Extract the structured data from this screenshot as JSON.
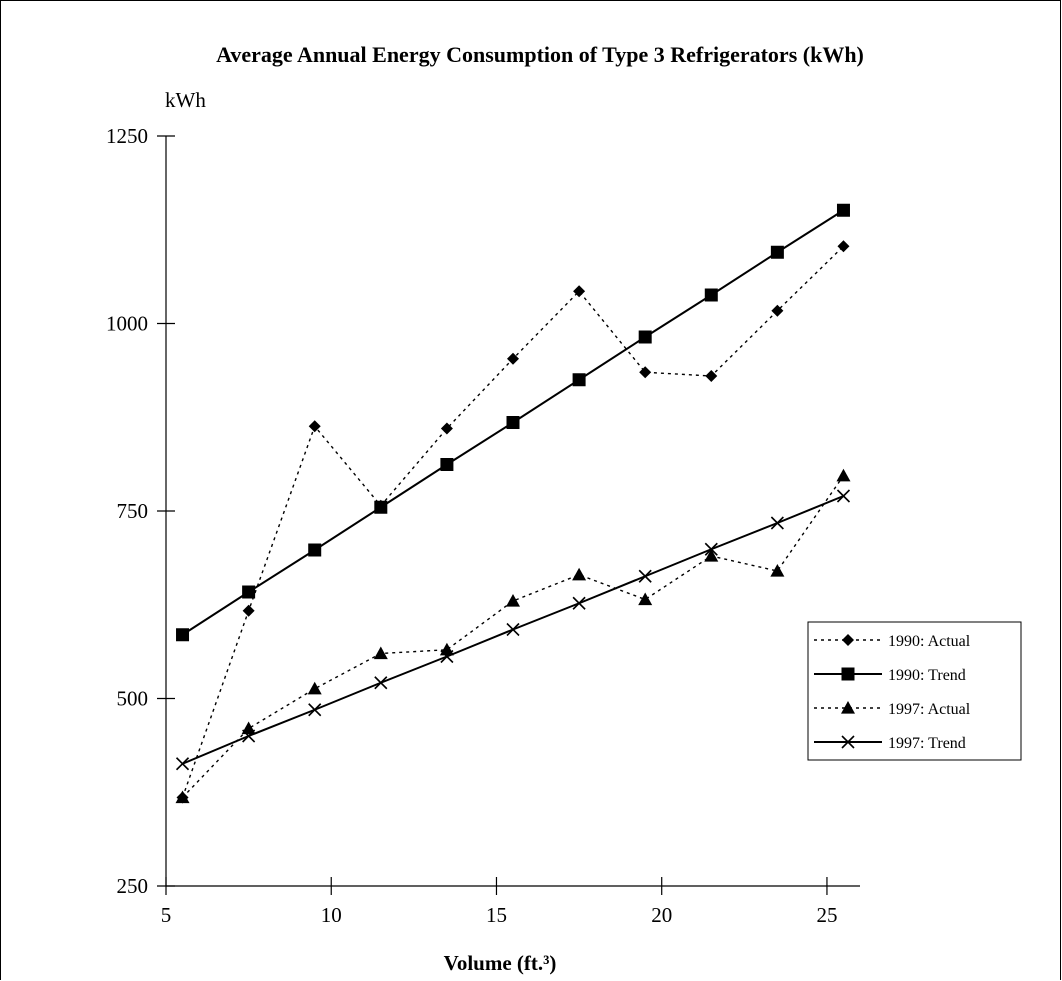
{
  "chart_data": {
    "type": "line",
    "title": "Average Annual Energy Consumption of Type 3 Refrigerators (kWh)",
    "xlabel": "Volume (ft.³)",
    "ylabel": "kWh",
    "xlim": [
      5,
      26
    ],
    "ylim": [
      250,
      1250
    ],
    "x_ticks": [
      "5",
      "10",
      "15",
      "20",
      "25"
    ],
    "y_ticks": [
      "250",
      "500",
      "750",
      "1000",
      "1250"
    ],
    "grid": false,
    "legend_position": "right",
    "x": [
      5.5,
      7.5,
      9.5,
      11.5,
      13.5,
      15.5,
      17.5,
      19.5,
      21.5,
      23.5,
      25.5
    ],
    "series": [
      {
        "name": "1990: Actual",
        "line_style": "dotted",
        "marker": "diamond",
        "values": [
          368,
          617,
          863,
          757,
          860,
          953,
          1043,
          935,
          930,
          1017,
          1103
        ]
      },
      {
        "name": "1990: Trend",
        "line_style": "solid",
        "marker": "square",
        "values": [
          585,
          642,
          698,
          755,
          812,
          868,
          925,
          982,
          1038,
          1095,
          1151
        ]
      },
      {
        "name": "1997: Actual",
        "line_style": "dotted",
        "marker": "triangle",
        "values": [
          368,
          460,
          513,
          560,
          565,
          630,
          665,
          632,
          690,
          670,
          797
        ]
      },
      {
        "name": "1997: Trend",
        "line_style": "solid",
        "marker": "x",
        "values": [
          413,
          450,
          485,
          521,
          556,
          592,
          627,
          663,
          699,
          734,
          770
        ]
      }
    ]
  }
}
